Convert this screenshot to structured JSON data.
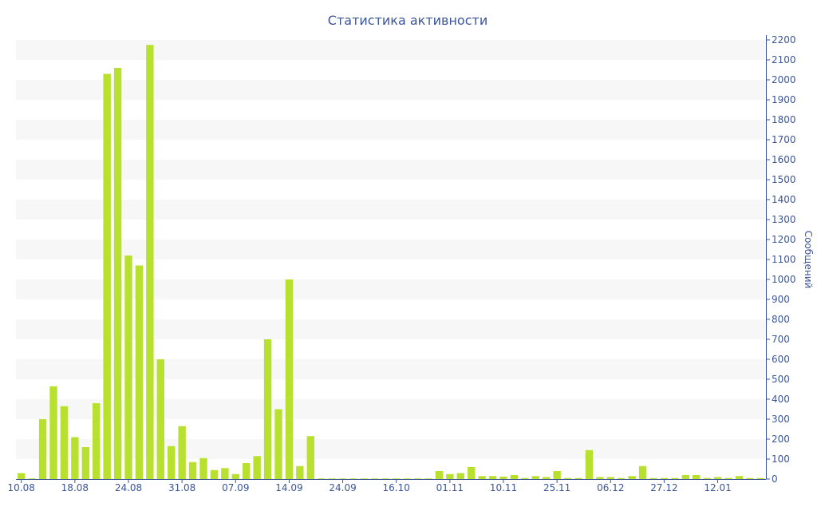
{
  "chart_data": {
    "type": "bar",
    "title": "Статистика активности",
    "xlabel": "",
    "ylabel": "Сообщений",
    "ylim": [
      0,
      2200
    ],
    "yticks": [
      0,
      100,
      200,
      300,
      400,
      500,
      600,
      700,
      800,
      900,
      1000,
      1100,
      1200,
      1300,
      1400,
      1500,
      1600,
      1700,
      1800,
      1900,
      2000,
      2100,
      2200
    ],
    "grid": "horizontal alternating bands",
    "legend": "none",
    "y_axis_side": "right",
    "bar_color": "#b8e12f",
    "band_color": "#f7f7f7",
    "text_color": "#3b5597",
    "x_tick_labels": [
      {
        "label": "10.08",
        "index": 0
      },
      {
        "label": "18.08",
        "index": 5
      },
      {
        "label": "24.08",
        "index": 10
      },
      {
        "label": "31.08",
        "index": 15
      },
      {
        "label": "07.09",
        "index": 20
      },
      {
        "label": "14.09",
        "index": 25
      },
      {
        "label": "24.09",
        "index": 30
      },
      {
        "label": "16.10",
        "index": 35
      },
      {
        "label": "01.11",
        "index": 40
      },
      {
        "label": "10.11",
        "index": 45
      },
      {
        "label": "25.11",
        "index": 50
      },
      {
        "label": "06.12",
        "index": 55
      },
      {
        "label": "27.12",
        "index": 60
      },
      {
        "label": "12.01",
        "index": 65
      }
    ],
    "values": [
      30,
      3,
      300,
      465,
      365,
      210,
      160,
      380,
      2030,
      2060,
      1120,
      1070,
      2175,
      600,
      165,
      265,
      85,
      105,
      45,
      55,
      25,
      80,
      115,
      700,
      350,
      1000,
      65,
      215,
      3,
      3,
      3,
      3,
      3,
      3,
      3,
      3,
      3,
      3,
      3,
      40,
      25,
      30,
      60,
      15,
      15,
      12,
      20,
      5,
      15,
      10,
      40,
      5,
      5,
      145,
      10,
      10,
      5,
      15,
      65,
      5,
      5,
      5,
      20,
      20,
      5,
      10,
      5,
      15,
      5,
      5
    ]
  }
}
